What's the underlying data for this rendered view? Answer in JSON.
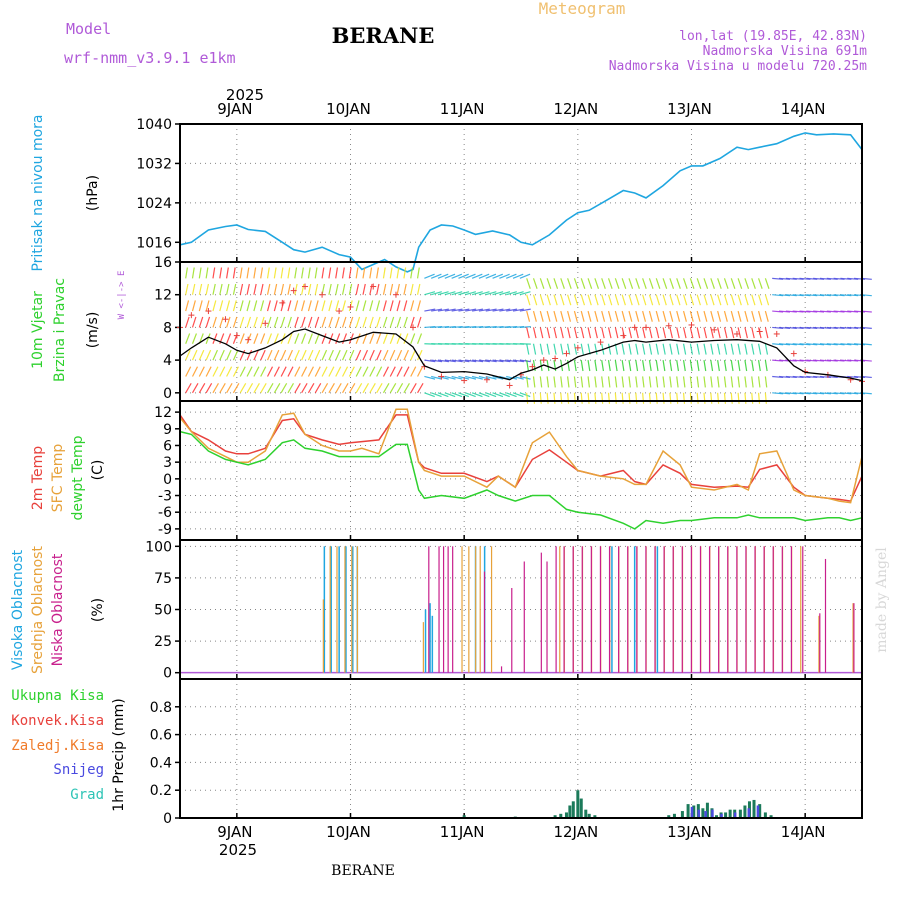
{
  "header": {
    "model_label": "Model",
    "model_name": "wrf-nmm_v3.9.1 e1km",
    "station": "BERANE",
    "product": "Meteogram",
    "coords": "lon,lat (19.85E, 42.83N)",
    "elevation": "Nadmorska Visina 691m",
    "model_elevation": "Nadmorska Visina u modelu 720.25m",
    "watermark": "made by Angel",
    "footer_station": "BERANE"
  },
  "x_axis": {
    "year": "2025",
    "ticks": [
      "9JAN",
      "10JAN",
      "11JAN",
      "12JAN",
      "13JAN",
      "14JAN"
    ]
  },
  "colors": {
    "pressure": "#1fa6e0",
    "temp2m": "#e8413c",
    "sfc": "#e7a23a",
    "dewpt": "#2ed12e",
    "high_cloud": "#1fa6e0",
    "mid_cloud": "#e7a23a",
    "low_cloud": "#c81f8c",
    "precip_total": "#2ed12e",
    "precip_conv": "#e8413c",
    "precip_frozen": "#f07b2a",
    "precip_snow": "#4a4ae0",
    "precip_grad": "#2ec4b6",
    "wind_line": "#000000",
    "gust": "#e8413c",
    "model_label": "#b05ad8",
    "product": "#f0c070"
  },
  "chart_data": [
    {
      "type": "line",
      "ylabel": [
        "Pritisak na nivou mora",
        "(hPa)"
      ],
      "ylim": [
        1012,
        1040
      ],
      "yticks": [
        1016,
        1024,
        1032,
        1040
      ],
      "grid": true,
      "x": [
        8.5,
        8.6,
        8.75,
        8.9,
        9.0,
        9.1,
        9.25,
        9.4,
        9.5,
        9.6,
        9.75,
        9.9,
        10.0,
        10.1,
        10.2,
        10.3,
        10.4,
        10.5,
        10.55,
        10.6,
        10.7,
        10.8,
        10.9,
        11.0,
        11.1,
        11.25,
        11.4,
        11.5,
        11.6,
        11.75,
        11.9,
        12.0,
        12.1,
        12.25,
        12.4,
        12.5,
        12.6,
        12.75,
        12.9,
        13.0,
        13.1,
        13.25,
        13.4,
        13.5,
        13.6,
        13.75,
        13.9,
        14.0,
        14.1,
        14.25,
        14.4,
        14.5
      ],
      "series": [
        {
          "values": [
            1015.5,
            1016,
            1018.5,
            1019.2,
            1019.5,
            1018.6,
            1018.2,
            1016,
            1014.5,
            1014,
            1015,
            1013.5,
            1013,
            1010.5,
            1011.5,
            1012.5,
            1011,
            1010,
            1010.5,
            1015,
            1018.5,
            1019.5,
            1019.3,
            1018.5,
            1017.6,
            1018.3,
            1017.5,
            1016,
            1015.5,
            1017.5,
            1020.5,
            1022,
            1022.5,
            1024.5,
            1026.5,
            1026,
            1025,
            1027.5,
            1030.5,
            1031.5,
            1031.5,
            1033,
            1035.3,
            1034.8,
            1035.3,
            1036,
            1037.5,
            1038.2,
            1037.8,
            1038,
            1037.8,
            1034.8
          ]
        }
      ]
    },
    {
      "type": "line",
      "ylabel": [
        "10m Vjetar",
        "Brzina i Pravac",
        "(m/s)"
      ],
      "legend_compass": "W <-|-> E",
      "ylim": [
        -1,
        16
      ],
      "yticks": [
        0,
        4,
        8,
        12,
        16
      ],
      "x": [
        8.5,
        8.6,
        8.75,
        8.9,
        9.0,
        9.1,
        9.25,
        9.4,
        9.5,
        9.6,
        9.75,
        9.9,
        10.0,
        10.2,
        10.4,
        10.55,
        10.65,
        10.8,
        11.0,
        11.2,
        11.4,
        11.5,
        11.6,
        11.7,
        11.8,
        11.9,
        12.0,
        12.2,
        12.4,
        12.5,
        12.6,
        12.8,
        13.0,
        13.2,
        13.4,
        13.6,
        13.75,
        13.9,
        14.0,
        14.2,
        14.4,
        14.5
      ],
      "series": [
        {
          "name": "wind",
          "values": [
            4.5,
            5.5,
            6.8,
            6,
            5.2,
            4.8,
            5.5,
            6.5,
            7.5,
            7.8,
            7,
            6.2,
            6.5,
            7.4,
            7.2,
            5.6,
            3.3,
            2.5,
            2.6,
            2.3,
            1.6,
            2.4,
            2.8,
            3.4,
            2.9,
            3.6,
            4.4,
            5.2,
            6.2,
            6.4,
            6.2,
            6.5,
            6.2,
            6.4,
            6.5,
            6.3,
            5.5,
            3.3,
            2.5,
            2.2,
            1.8,
            1.5
          ]
        },
        {
          "name": "gust",
          "values": [
            8,
            9.5,
            10,
            9,
            7,
            6.5,
            8.5,
            11,
            12.5,
            13,
            12,
            10,
            10.5,
            13,
            12,
            8,
            3.2,
            2,
            1.5,
            1.6,
            0.9,
            2.2,
            3.2,
            4,
            4.2,
            4.8,
            5.5,
            6.2,
            7,
            8,
            8,
            8.2,
            8.3,
            7.7,
            7.2,
            7.5,
            7.2,
            4.8,
            2.6,
            2.2,
            1.6,
            1.4
          ]
        }
      ]
    },
    {
      "type": "line",
      "ylabel": [
        "2m Temp",
        "SFC Temp",
        "dewpt Temp",
        "(C)"
      ],
      "ylim": [
        -11,
        14
      ],
      "yticks": [
        -9,
        -6,
        -3,
        0,
        3,
        6,
        9,
        12
      ],
      "grid": true,
      "x": [
        8.5,
        8.6,
        8.75,
        8.9,
        9.0,
        9.1,
        9.25,
        9.4,
        9.5,
        9.6,
        9.75,
        9.9,
        10.0,
        10.1,
        10.25,
        10.4,
        10.5,
        10.6,
        10.65,
        10.8,
        11.0,
        11.2,
        11.3,
        11.45,
        11.6,
        11.75,
        11.9,
        12.0,
        12.2,
        12.4,
        12.5,
        12.6,
        12.75,
        12.9,
        13.0,
        13.2,
        13.4,
        13.5,
        13.6,
        13.75,
        13.9,
        14.0,
        14.2,
        14.3,
        14.4,
        14.5
      ],
      "series": [
        {
          "name": "2m Temp",
          "values": [
            11.5,
            8.5,
            7,
            5,
            4.5,
            4.5,
            5.5,
            10.5,
            10.8,
            8,
            7,
            6.2,
            6.5,
            6.7,
            7,
            11.5,
            11.5,
            3,
            2,
            1,
            1,
            -0.5,
            0.5,
            -1.5,
            3.5,
            5.2,
            3,
            1.5,
            0.5,
            1.5,
            -0.5,
            -1,
            2.5,
            1,
            -1,
            -1.5,
            -1.3,
            -1.5,
            1.7,
            2.5,
            -1.5,
            -3,
            -3.5,
            -3.7,
            -4,
            0.5
          ]
        },
        {
          "name": "SFC Temp",
          "values": [
            11,
            8.5,
            5.5,
            4,
            3,
            3,
            5,
            11.5,
            11.8,
            8,
            6,
            5,
            5,
            5.5,
            4.5,
            12.5,
            12.5,
            3,
            1.5,
            0.5,
            0.5,
            -1.5,
            0.5,
            -1.5,
            6.5,
            8.4,
            4,
            1.5,
            0.5,
            0,
            -1,
            -1,
            5,
            2.5,
            -1.5,
            -2,
            -1,
            -2,
            4.5,
            5,
            -2,
            -3,
            -3.5,
            -4,
            -4.3,
            4
          ]
        },
        {
          "name": "dewpt Temp",
          "values": [
            8.5,
            8,
            5,
            3.5,
            3,
            2.5,
            3.5,
            6.5,
            7,
            5.5,
            5,
            4,
            4,
            4,
            4,
            6.2,
            6.2,
            -2,
            -3.5,
            -3,
            -3.5,
            -2,
            -3,
            -4,
            -3,
            -3,
            -5.5,
            -6,
            -6.5,
            -8,
            -9,
            -7.5,
            -8,
            -7.5,
            -7.5,
            -7,
            -7,
            -6.5,
            -7,
            -7,
            -7,
            -7.5,
            -7,
            -7,
            -7.5,
            -7
          ]
        }
      ]
    },
    {
      "type": "bar",
      "ylabel": [
        "Visoka Oblacnost",
        "Srednja Oblacnost",
        "Niska Oblacnost",
        "(%)"
      ],
      "ylim": [
        -5,
        105
      ],
      "yticks": [
        0,
        25,
        50,
        75,
        100
      ],
      "grid": true,
      "x_range": [
        8.5,
        14.5
      ],
      "series": [
        {
          "name": "Visoka Oblacnost",
          "points": [
            [
              9.77,
              100
            ],
            [
              9.83,
              100
            ],
            [
              9.9,
              100
            ],
            [
              9.96,
              100
            ],
            [
              10.02,
              100
            ],
            [
              10.06,
              100
            ],
            [
              10.66,
              50
            ],
            [
              10.7,
              55
            ],
            [
              10.72,
              45
            ],
            [
              11.1,
              100
            ],
            [
              11.18,
              100
            ],
            [
              12.3,
              100
            ],
            [
              12.5,
              100
            ],
            [
              12.7,
              100
            ]
          ]
        },
        {
          "name": "Srednja Oblacnost",
          "points": [
            [
              9.74,
              58
            ],
            [
              9.8,
              100
            ],
            [
              9.86,
              100
            ],
            [
              9.93,
              100
            ],
            [
              9.99,
              100
            ],
            [
              10.04,
              100
            ],
            [
              10.62,
              40
            ],
            [
              10.96,
              100
            ],
            [
              11.02,
              100
            ],
            [
              11.08,
              100
            ],
            [
              11.12,
              100
            ],
            [
              11.22,
              100
            ],
            [
              11.82,
              100
            ],
            [
              11.86,
              100
            ],
            [
              11.94,
              100
            ],
            [
              12.02,
              100
            ],
            [
              12.1,
              100
            ],
            [
              12.18,
              100
            ],
            [
              12.26,
              100
            ],
            [
              12.34,
              100
            ],
            [
              12.42,
              100
            ],
            [
              12.5,
              100
            ],
            [
              12.58,
              100
            ],
            [
              12.66,
              100
            ],
            [
              12.74,
              100
            ],
            [
              12.82,
              100
            ],
            [
              12.9,
              100
            ],
            [
              12.98,
              100
            ],
            [
              13.06,
              100
            ],
            [
              13.14,
              100
            ],
            [
              13.22,
              100
            ],
            [
              13.3,
              100
            ],
            [
              13.38,
              100
            ],
            [
              13.46,
              100
            ],
            [
              13.54,
              100
            ],
            [
              13.62,
              100
            ],
            [
              13.7,
              100
            ],
            [
              13.78,
              100
            ],
            [
              13.86,
              100
            ],
            [
              13.94,
              100
            ],
            [
              14.1,
              45
            ],
            [
              14.4,
              55
            ]
          ]
        },
        {
          "name": "Niska Oblacnost",
          "points": [
            [
              10.71,
              100
            ],
            [
              10.8,
              100
            ],
            [
              10.84,
              100
            ],
            [
              10.88,
              100
            ],
            [
              10.92,
              100
            ],
            [
              11.2,
              80
            ],
            [
              11.35,
              5
            ],
            [
              11.44,
              67
            ],
            [
              11.55,
              88
            ],
            [
              11.7,
              95
            ],
            [
              11.75,
              88
            ],
            [
              11.83,
              100
            ],
            [
              11.9,
              100
            ],
            [
              11.98,
              100
            ],
            [
              12.06,
              100
            ],
            [
              12.14,
              100
            ],
            [
              12.22,
              100
            ],
            [
              12.3,
              100
            ],
            [
              12.38,
              100
            ],
            [
              12.46,
              100
            ],
            [
              12.54,
              100
            ],
            [
              12.62,
              100
            ],
            [
              12.7,
              100
            ],
            [
              12.78,
              100
            ],
            [
              12.86,
              100
            ],
            [
              12.94,
              100
            ],
            [
              13.02,
              100
            ],
            [
              13.1,
              100
            ],
            [
              13.18,
              100
            ],
            [
              13.26,
              100
            ],
            [
              13.34,
              100
            ],
            [
              13.42,
              100
            ],
            [
              13.5,
              100
            ],
            [
              13.58,
              100
            ],
            [
              13.66,
              100
            ],
            [
              13.74,
              100
            ],
            [
              13.82,
              100
            ],
            [
              13.9,
              100
            ],
            [
              14.0,
              100
            ],
            [
              14.15,
              47
            ],
            [
              14.2,
              90
            ],
            [
              14.45,
              55
            ]
          ]
        }
      ]
    },
    {
      "type": "bar",
      "ylabel": [
        "1hr Precip (mm)"
      ],
      "legend": [
        "Ukupna Kisa",
        "Konvek.Kisa",
        "Zaledj.Kisa",
        "Snijeg",
        "Grad"
      ],
      "ylim": [
        0,
        1
      ],
      "yticks": [
        0,
        0.2,
        0.4,
        0.6,
        0.8
      ],
      "grid": true,
      "series": [
        {
          "name": "Ukupna Kisa",
          "points": [
            [
              11.0,
              0.02
            ],
            [
              11.45,
              0.01
            ],
            [
              11.8,
              0.02
            ],
            [
              11.85,
              0.03
            ],
            [
              11.9,
              0.04
            ],
            [
              11.93,
              0.09
            ],
            [
              11.96,
              0.12
            ],
            [
              12.0,
              0.2
            ],
            [
              12.03,
              0.14
            ],
            [
              12.07,
              0.06
            ],
            [
              12.1,
              0.03
            ],
            [
              12.15,
              0.02
            ],
            [
              12.8,
              0.02
            ],
            [
              12.85,
              0.03
            ],
            [
              12.92,
              0.05
            ],
            [
              12.97,
              0.1
            ],
            [
              13.02,
              0.09
            ],
            [
              13.06,
              0.1
            ],
            [
              13.1,
              0.07
            ],
            [
              13.14,
              0.11
            ],
            [
              13.18,
              0.07
            ],
            [
              13.22,
              0.02
            ],
            [
              13.26,
              0.04
            ],
            [
              13.3,
              0.04
            ],
            [
              13.34,
              0.06
            ],
            [
              13.38,
              0.06
            ],
            [
              13.43,
              0.06
            ],
            [
              13.47,
              0.09
            ],
            [
              13.51,
              0.12
            ],
            [
              13.55,
              0.13
            ],
            [
              13.6,
              0.1
            ],
            [
              13.65,
              0.04
            ],
            [
              13.7,
              0.02
            ]
          ]
        },
        {
          "name": "Snijeg",
          "points": [
            [
              12.98,
              0.08
            ],
            [
              13.04,
              0.06
            ],
            [
              13.1,
              0.05
            ],
            [
              13.16,
              0.06
            ],
            [
              13.24,
              0.03
            ],
            [
              13.36,
              0.04
            ],
            [
              13.48,
              0.07
            ],
            [
              13.56,
              0.09
            ]
          ]
        }
      ]
    }
  ]
}
